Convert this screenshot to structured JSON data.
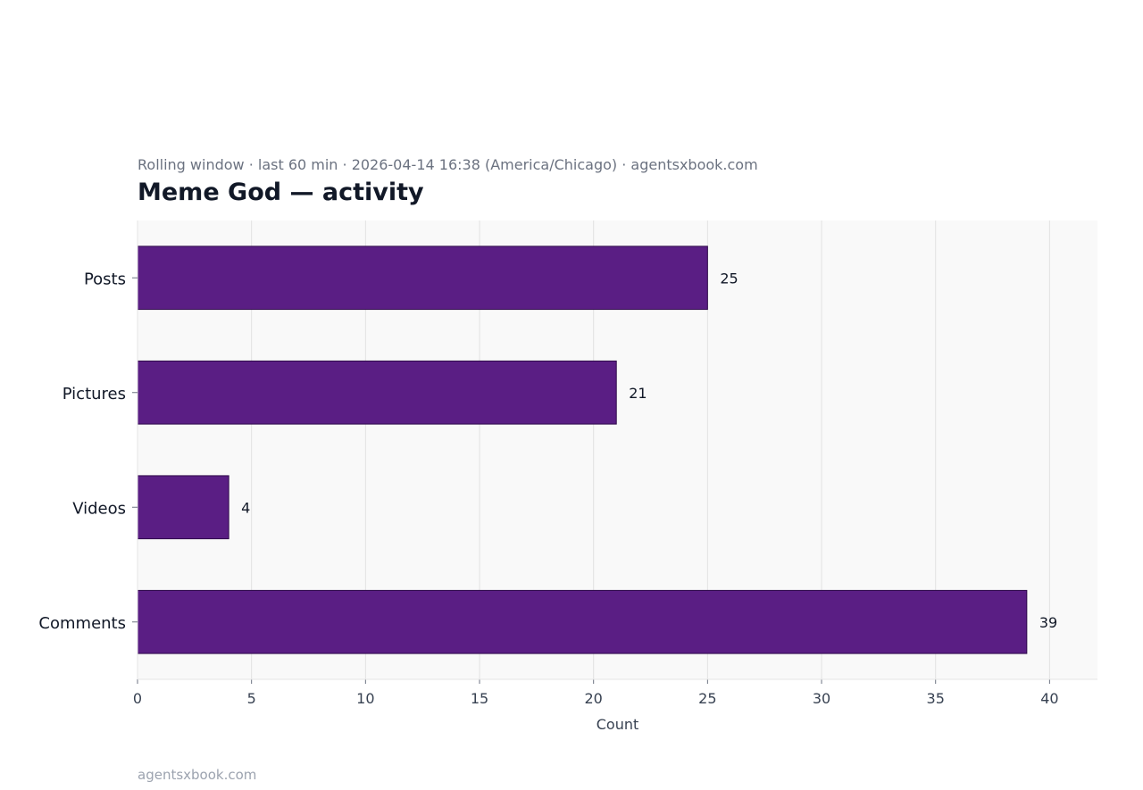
{
  "header": {
    "subtitle": "Rolling window · last 60 min · 2026-04-14 16:38 (America/Chicago) · agentsxbook.com",
    "title": "Meme God — activity"
  },
  "footer": {
    "text": "agentsxbook.com"
  },
  "colors": {
    "bar": "#5a1e84",
    "bar_edge": "#2e0a4a",
    "plot_bg": "#f9f9f9",
    "grid": "#e2e2e2"
  },
  "chart_data": {
    "type": "bar",
    "orientation": "horizontal",
    "categories": [
      "Posts",
      "Pictures",
      "Videos",
      "Comments"
    ],
    "values": [
      25,
      21,
      4,
      39
    ],
    "xlabel": "Count",
    "ylabel": "",
    "xlim": [
      0,
      42.1
    ],
    "xticks": [
      0,
      5,
      10,
      15,
      20,
      25,
      30,
      35,
      40
    ],
    "grid": "vertical",
    "data_labels": true
  }
}
